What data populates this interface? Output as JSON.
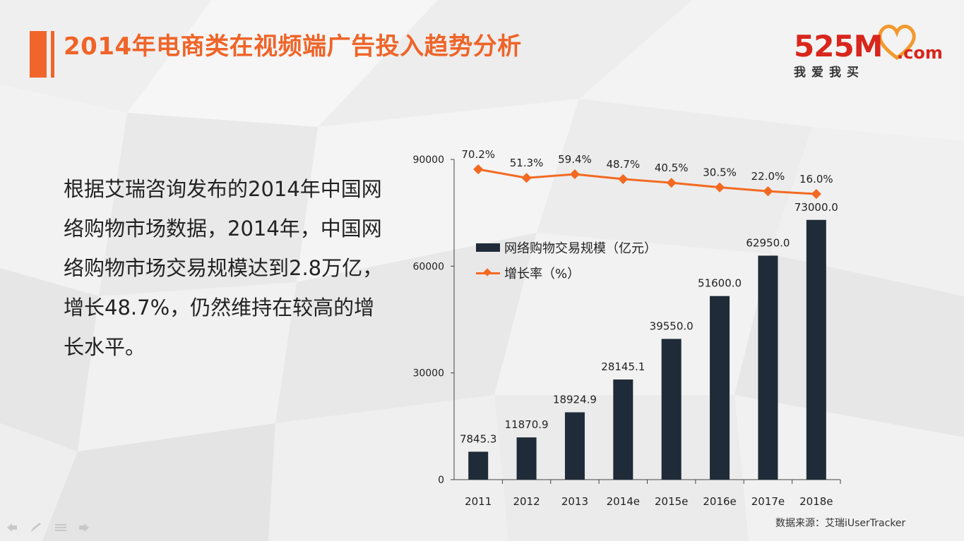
{
  "header": {
    "title": "2014年电商类在视频端广告投入趋势分析"
  },
  "logo": {
    "main": "525M",
    "com": ".com",
    "sub": "我爱我买"
  },
  "body": {
    "paragraph": "根据艾瑞咨询发布的2014年中国网络购物市场数据，2014年，中国网络购物市场交易规模达到2.8万亿，增长48.7%，仍然维持在较高的增长水平。"
  },
  "source": "数据来源：艾瑞iUserTracker",
  "colors": {
    "accent": "#f0652a",
    "bar": "#1f2b38",
    "line": "#f26a22"
  },
  "chart_data": {
    "type": "bar",
    "categories": [
      "2011",
      "2012",
      "2013",
      "2014e",
      "2015e",
      "2016e",
      "2017e",
      "2018e"
    ],
    "series": [
      {
        "name": "网络购物交易规模（亿元）",
        "type": "bar",
        "values": [
          7845.3,
          11870.9,
          18924.9,
          28145.1,
          39550.0,
          51600.0,
          62950.0,
          73000.0
        ],
        "labels": [
          "7845.3",
          "11870.9",
          "18924.9",
          "28145.1",
          "39550.0",
          "51600.0",
          "62950.0",
          "73000.0"
        ]
      },
      {
        "name": "增长率（%）",
        "type": "line",
        "values": [
          70.2,
          51.3,
          59.4,
          48.7,
          40.5,
          30.5,
          22.0,
          16.0
        ],
        "labels": [
          "70.2%",
          "51.3%",
          "59.4%",
          "48.7%",
          "40.5%",
          "30.5%",
          "22.0%",
          "16.0%"
        ]
      }
    ],
    "yticks": [
      "0",
      "30000",
      "60000",
      "90000"
    ],
    "ylim": [
      0,
      90000
    ],
    "legend_position": "left, inside plot",
    "grid": false
  }
}
